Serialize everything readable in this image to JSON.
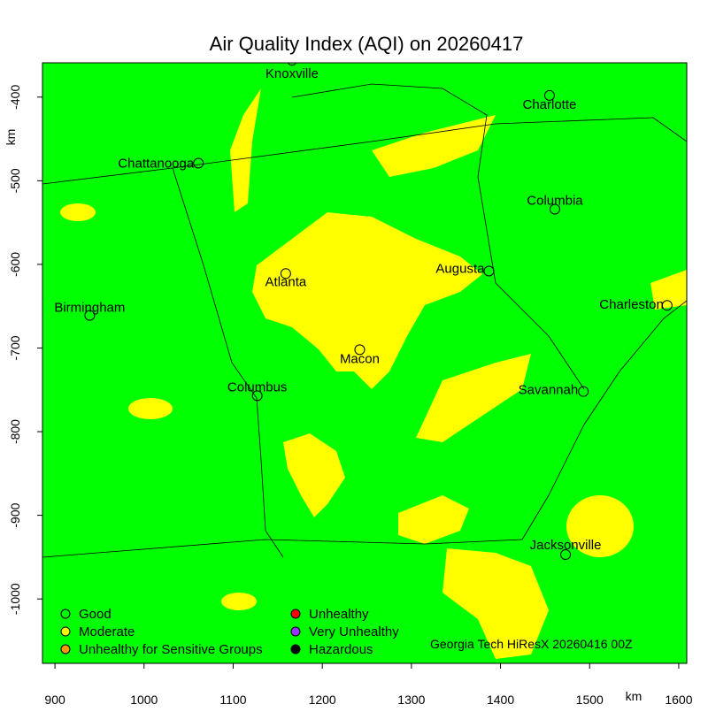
{
  "chart_data": {
    "type": "map",
    "title": "Air Quality Index (AQI) on 20260417",
    "xlabel": "km",
    "ylabel": "km",
    "xlim": [
      886,
      1609
    ],
    "ylim": [
      -1077,
      -359
    ],
    "xticks": [
      900,
      1000,
      1100,
      1200,
      1300,
      1400,
      1500,
      1600
    ],
    "yticks": [
      -400,
      -500,
      -600,
      -700,
      -800,
      -900,
      -1000
    ],
    "background_color": "#00ff00",
    "cities": [
      {
        "name": "Knoxville",
        "x": 1166,
        "y": -356
      },
      {
        "name": "Charlotte",
        "x": 1455,
        "y": -398
      },
      {
        "name": "Chattanooga",
        "x": 1061,
        "y": -479
      },
      {
        "name": "Columbia",
        "x": 1461,
        "y": -534
      },
      {
        "name": "Augusta",
        "x": 1387,
        "y": -608
      },
      {
        "name": "Atlanta",
        "x": 1159,
        "y": -611
      },
      {
        "name": "Birmingham",
        "x": 939,
        "y": -661
      },
      {
        "name": "Charleston",
        "x": 1587,
        "y": -649
      },
      {
        "name": "Macon",
        "x": 1242,
        "y": -702
      },
      {
        "name": "Columbus",
        "x": 1127,
        "y": -757
      },
      {
        "name": "Savannah",
        "x": 1493,
        "y": -752
      },
      {
        "name": "Jacksonville",
        "x": 1473,
        "y": -947
      }
    ],
    "legend": [
      {
        "name": "Good",
        "color": "#00ff00"
      },
      {
        "name": "Moderate",
        "color": "#ffff00"
      },
      {
        "name": "Unhealthy for Sensitive Groups",
        "color": "#ff9900"
      },
      {
        "name": "Unhealthy",
        "color": "#ff0000"
      },
      {
        "name": "Very Unhealthy",
        "color": "#9933ff"
      },
      {
        "name": "Hazardous",
        "color": "#000000"
      }
    ],
    "credit": "Georgia Tech HiResX 20260416 00Z"
  }
}
